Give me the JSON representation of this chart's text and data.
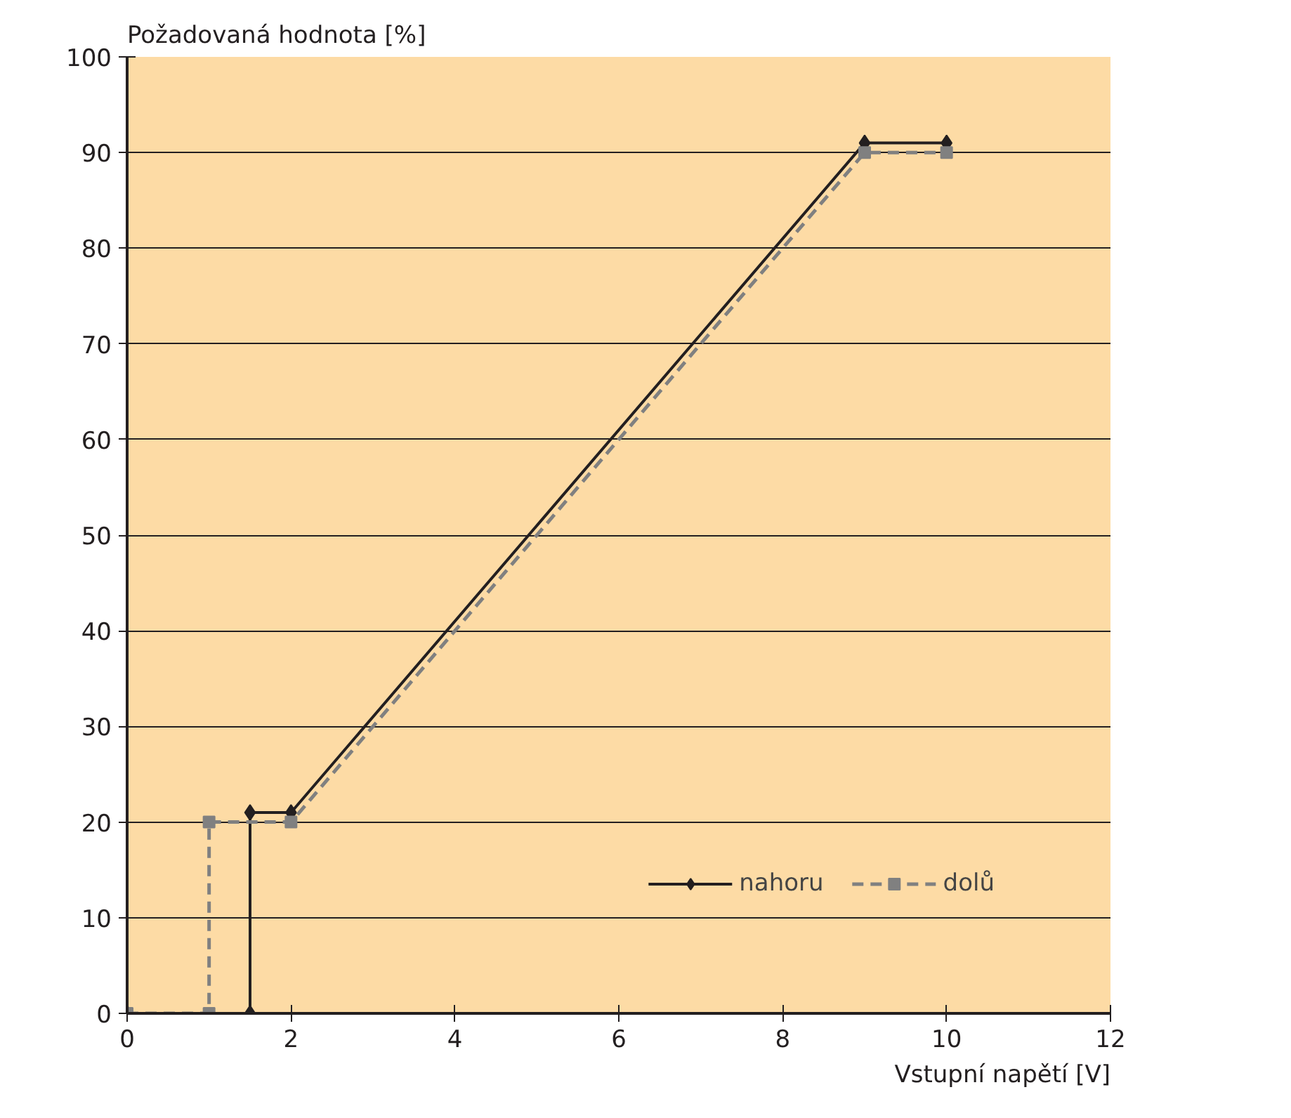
{
  "chart_data": {
    "type": "line",
    "xlabel": "Vstupní napětí [V]",
    "ylabel": "Požadovaná hodnota [%]",
    "xlim": [
      0,
      12
    ],
    "xticks": [
      0,
      2,
      4,
      6,
      8,
      10,
      12
    ],
    "ylim": [
      0,
      100
    ],
    "yticks": [
      0,
      10,
      20,
      30,
      40,
      50,
      60,
      70,
      80,
      90,
      100
    ],
    "grid": "y",
    "legend": "bottom right",
    "series": [
      {
        "name": "nahoru",
        "color": "#231f20",
        "x": [
          0,
          1.5,
          1.5,
          2,
          9,
          10
        ],
        "values": [
          0,
          0,
          21,
          21,
          91,
          91
        ],
        "marker": "diamond",
        "line_style": "solid"
      },
      {
        "name": "dolů",
        "color": "#808080",
        "x": [
          0,
          1,
          1,
          2,
          9,
          10
        ],
        "values": [
          0,
          0,
          20,
          20,
          90,
          90
        ],
        "marker": "square",
        "line_style": "dashed"
      }
    ]
  }
}
